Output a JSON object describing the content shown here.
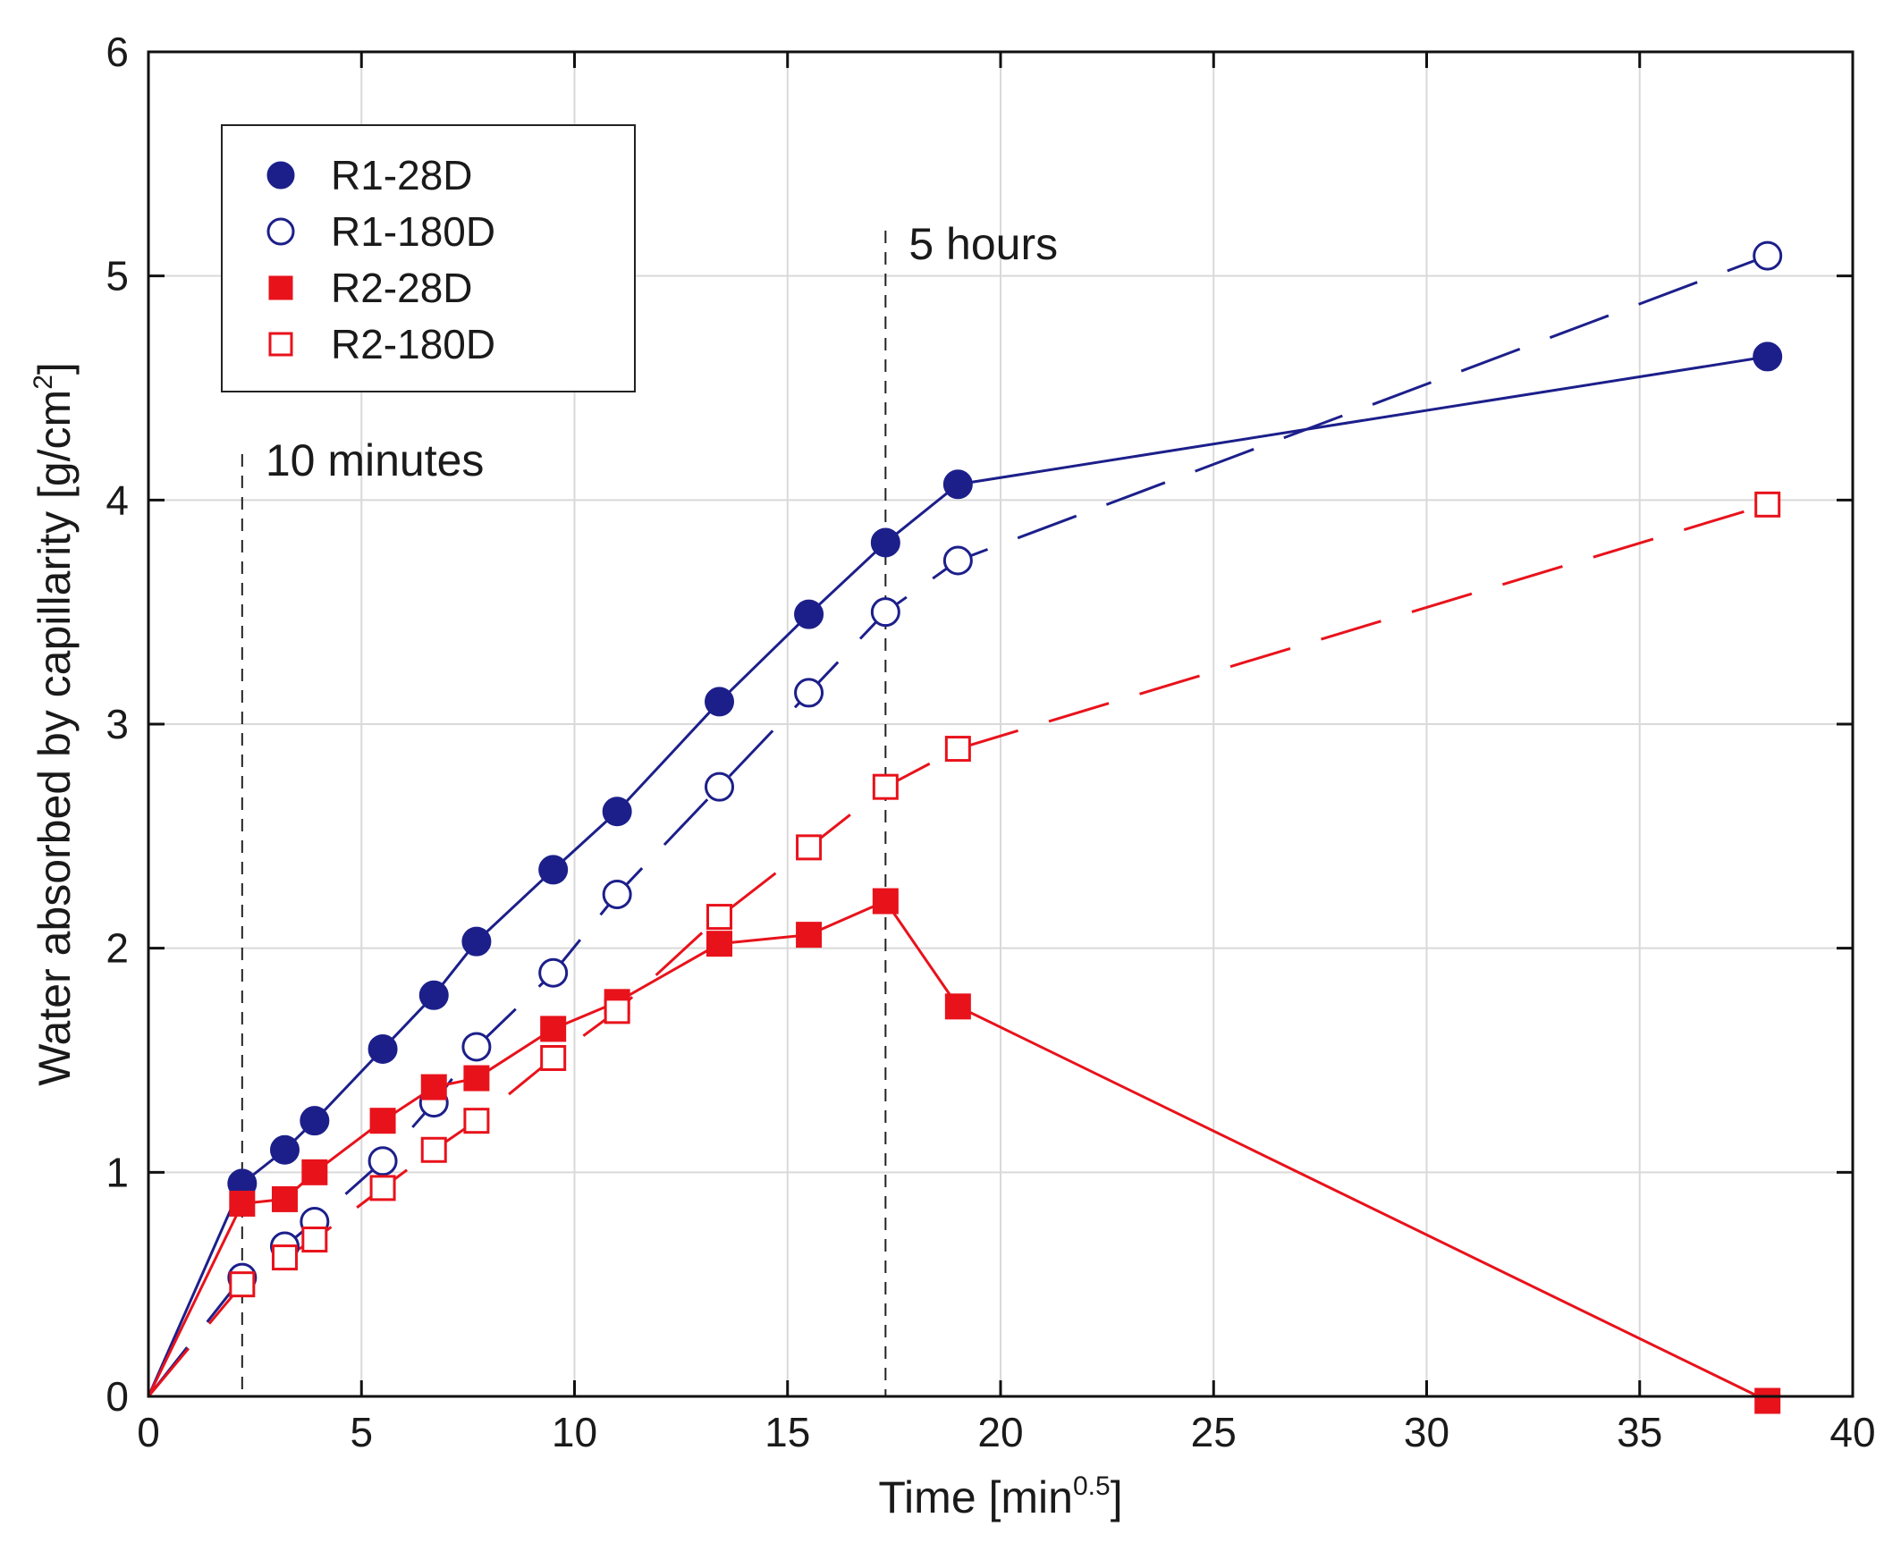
{
  "chart_data": {
    "type": "line",
    "title": "",
    "xlabel": "Time [min",
    "xlabel_sup": "0.5",
    "xlabel_close": "]",
    "ylabel": "Water absorbed by capillarity [g/cm",
    "ylabel_sup": "2",
    "ylabel_close": "]",
    "xlim": [
      0,
      40
    ],
    "ylim": [
      0,
      6
    ],
    "xticks": [
      0,
      5,
      10,
      15,
      20,
      25,
      30,
      35,
      40
    ],
    "yticks": [
      0,
      1,
      2,
      3,
      4,
      5,
      6
    ],
    "grid": true,
    "legend_position": "top-left",
    "series": [
      {
        "name": "R1-28D",
        "color": "#1c1f8a",
        "marker": "circle",
        "filled": true,
        "line": "solid",
        "x": [
          0,
          2.2,
          3.2,
          3.9,
          5.5,
          6.7,
          7.7,
          9.5,
          11.0,
          13.4,
          15.5,
          17.3,
          19.0,
          38.0
        ],
        "y": [
          0,
          0.95,
          1.1,
          1.23,
          1.55,
          1.79,
          2.03,
          2.35,
          2.61,
          3.1,
          3.49,
          3.81,
          4.07,
          4.64
        ]
      },
      {
        "name": "R1-180D",
        "color": "#1c1f8a",
        "marker": "circle",
        "filled": false,
        "line": "dashed",
        "x": [
          0,
          2.2,
          3.2,
          3.9,
          5.5,
          6.7,
          7.7,
          9.5,
          11.0,
          13.4,
          15.5,
          17.3,
          19.0,
          38.0
        ],
        "y": [
          0,
          0.53,
          0.67,
          0.78,
          1.05,
          1.31,
          1.56,
          1.89,
          2.24,
          2.72,
          3.14,
          3.5,
          3.73,
          5.09
        ]
      },
      {
        "name": "R2-28D",
        "color": "#e8121b",
        "marker": "square",
        "filled": true,
        "line": "solid",
        "x": [
          0,
          2.2,
          3.2,
          3.9,
          5.5,
          6.7,
          7.7,
          9.5,
          11.0,
          13.4,
          15.5,
          17.3,
          19.0,
          38.0
        ],
        "y": [
          0,
          0.86,
          0.88,
          1.0,
          1.23,
          1.38,
          1.42,
          1.64,
          1.76,
          2.02,
          2.06,
          2.21,
          1.74,
          -0.02
        ]
      },
      {
        "name": "R2-180D",
        "color": "#e8121b",
        "marker": "square",
        "filled": false,
        "line": "dashed",
        "x": [
          0,
          2.2,
          3.2,
          3.9,
          5.5,
          6.7,
          7.7,
          9.5,
          11.0,
          13.4,
          15.5,
          17.3,
          19.0,
          38.0
        ],
        "y": [
          0,
          0.5,
          0.62,
          0.7,
          0.93,
          1.1,
          1.23,
          1.51,
          1.72,
          2.14,
          2.45,
          2.72,
          2.89,
          3.98
        ]
      }
    ],
    "annotations": [
      {
        "text": "10 minutes",
        "x": 2.2
      },
      {
        "text": "5 hours",
        "x": 17.3
      }
    ]
  }
}
